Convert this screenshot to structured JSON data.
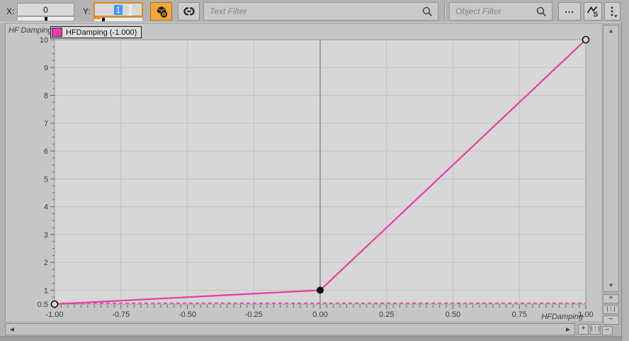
{
  "toolbar": {
    "x_field": {
      "label": "X:",
      "value": "0"
    },
    "y_field": {
      "label": "Y:",
      "value": "1"
    },
    "snap_button": {
      "icon": "cube-circle-icon",
      "active": true
    },
    "link_button": {
      "icon": "link-icon"
    },
    "text_filter": {
      "placeholder": "Text Filter",
      "icon": "search-icon"
    },
    "object_filter": {
      "placeholder": "Object Filter",
      "icon": "search-icon"
    },
    "more_button": {
      "label": "..."
    },
    "curve_scale_button": {
      "icon": "curve-scale-icon",
      "label": "S"
    },
    "menu_button": {
      "icon": "kebab-menu-icon"
    }
  },
  "icons": {
    "scroll_up": "▲",
    "scroll_down": "▼",
    "scroll_left": "◀",
    "scroll_right": "▶",
    "zoom_in": "+",
    "zoom_fit": "|:|",
    "zoom_out": "−"
  },
  "chart_data": {
    "type": "line",
    "title": "",
    "y_axis_label": "HF Damping",
    "x_axis_label": "HFDamping",
    "legend": [
      {
        "label": "HFDamping (-1.000)",
        "color": "#f136ae"
      }
    ],
    "series": [
      {
        "name": "HFDamping",
        "color": "#e83ba6",
        "points": [
          [
            -1,
            0.5
          ],
          [
            0,
            1
          ],
          [
            1,
            10
          ]
        ]
      }
    ],
    "control_points": [
      {
        "x": -1,
        "y": 0.5,
        "style": "open"
      },
      {
        "x": 0,
        "y": 1,
        "style": "filled"
      },
      {
        "x": 1,
        "y": 10,
        "style": "open"
      }
    ],
    "x_ticks": [
      -1,
      -0.75,
      -0.5,
      -0.25,
      0,
      0.25,
      0.5,
      0.75,
      1
    ],
    "x_tick_labels": [
      "-1.00",
      "-0.75",
      "-0.50",
      "-0.25",
      "0.00",
      "0.25",
      "0.50",
      "0.75",
      "1.00"
    ],
    "y_ticks": [
      1,
      2,
      3,
      4,
      5,
      6,
      7,
      8,
      9,
      10
    ],
    "y_tick_labels": [
      "1",
      "2",
      "3",
      "4",
      "5",
      "6",
      "7",
      "8",
      "9",
      "10"
    ],
    "y_extra_label": "0.5",
    "xlim": [
      -1,
      1
    ],
    "ylim": [
      0.5,
      10
    ],
    "cursor_x": 0,
    "grid": true,
    "legend_position": "top-left",
    "colors": {
      "plot_bg": "#d7d7d7",
      "outer_bg": "#c6c6c6",
      "grid": "#c2c2c2",
      "axis": "#9a9a9a",
      "tick": "#666666",
      "cursor_line": "#787878",
      "point": "#111111"
    }
  }
}
